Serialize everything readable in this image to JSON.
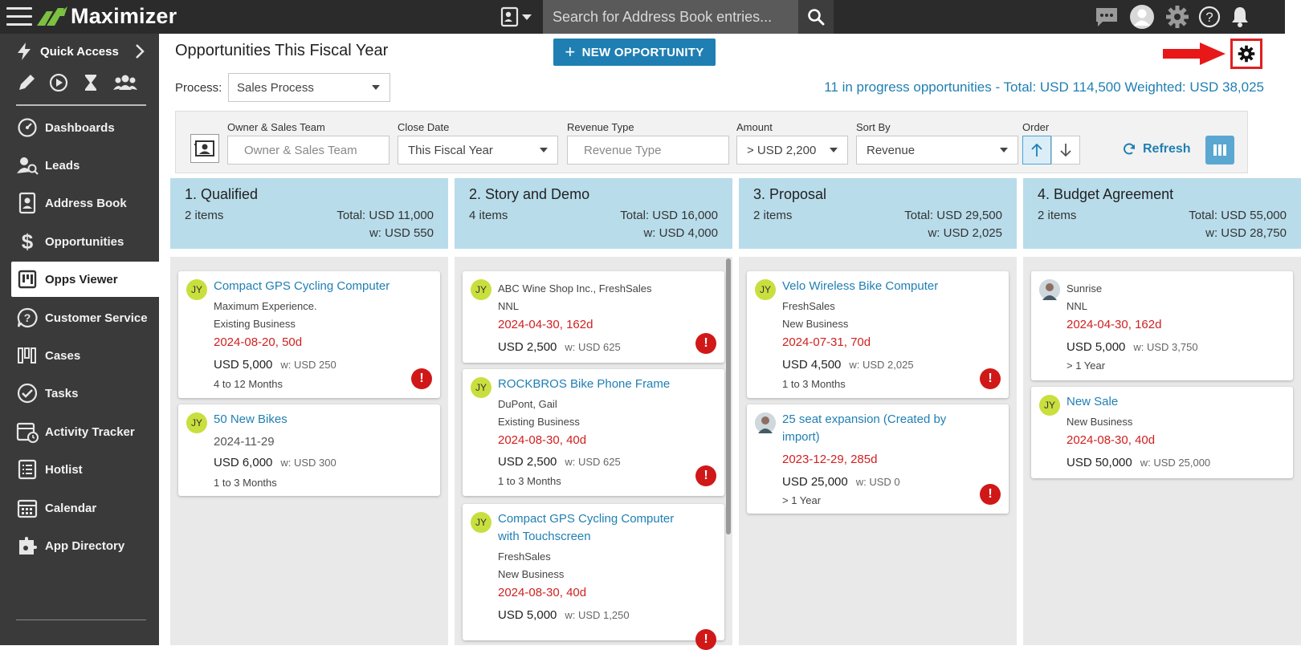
{
  "app": {
    "name": "Maximizer"
  },
  "search": {
    "placeholder": "Search for Address Book entries..."
  },
  "sidebar": {
    "quick_access": "Quick Access",
    "items": [
      {
        "label": "Dashboards",
        "icon": "dashboard-icon"
      },
      {
        "label": "Leads",
        "icon": "leads-icon"
      },
      {
        "label": "Address Book",
        "icon": "address-book-icon"
      },
      {
        "label": "Opportunities",
        "icon": "dollar-icon"
      },
      {
        "label": "Opps Viewer",
        "icon": "opps-viewer-icon",
        "active": true
      },
      {
        "label": "Customer Service",
        "icon": "customer-service-icon"
      },
      {
        "label": "Cases",
        "icon": "cases-icon"
      },
      {
        "label": "Tasks",
        "icon": "tasks-icon"
      },
      {
        "label": "Activity Tracker",
        "icon": "activity-tracker-icon"
      },
      {
        "label": "Hotlist",
        "icon": "hotlist-icon"
      },
      {
        "label": "Calendar",
        "icon": "calendar-icon"
      },
      {
        "label": "App Directory",
        "icon": "app-directory-icon"
      }
    ]
  },
  "header": {
    "title": "Opportunities This Fiscal Year",
    "new_button": "NEW OPPORTUNITY",
    "process_label": "Process:",
    "process_value": "Sales Process",
    "summary": "11 in progress opportunities - Total: USD 114,500 Weighted: USD 38,025"
  },
  "filters": {
    "owner_label": "Owner & Sales Team",
    "owner_placeholder": "Owner & Sales Team",
    "close_label": "Close Date",
    "close_value": "This Fiscal Year",
    "revenue_label": "Revenue Type",
    "revenue_placeholder": "Revenue Type",
    "amount_label": "Amount",
    "amount_value": "> USD 2,200",
    "sort_label": "Sort By",
    "sort_value": "Revenue",
    "order_label": "Order",
    "refresh": "Refresh"
  },
  "columns": [
    {
      "title": "1. Qualified",
      "count": "2 items",
      "total": "Total: USD 11,000",
      "weighted": "w: USD 550",
      "cards": [
        {
          "avatar": "JY",
          "title": "Compact GPS Cycling Computer",
          "lines": [
            "Maximum Experience.",
            "Existing Business"
          ],
          "date": "2024-08-20, 50d",
          "amount": "USD 5,000",
          "w": "w: USD 250",
          "term": "4 to 12 Months",
          "alert": true
        },
        {
          "avatar": "JY",
          "title": "50 New Bikes",
          "lines": [],
          "date": "2024-11-29",
          "amount": "USD 6,000",
          "w": "w: USD 300",
          "term": "1 to 3 Months",
          "alert": false
        }
      ]
    },
    {
      "title": "2. Story and Demo",
      "count": "4 items",
      "total": "Total: USD 16,000",
      "weighted": "w: USD 4,000",
      "cards": [
        {
          "avatar": "JY",
          "title": "",
          "lines": [
            "ABC Wine Shop Inc., FreshSales",
            "NNL"
          ],
          "date": "2024-04-30, 162d",
          "amount": "USD 2,500",
          "w": "w: USD 625",
          "term": "",
          "alert": true
        },
        {
          "avatar": "JY",
          "title": "ROCKBROS Bike Phone Frame",
          "lines": [
            "DuPont, Gail",
            "Existing Business"
          ],
          "date": "2024-08-30, 40d",
          "amount": "USD 2,500",
          "w": "w: USD 625",
          "term": "1 to 3 Months",
          "alert": true
        },
        {
          "avatar": "JY",
          "title": "Compact GPS Cycling Computer with Touchscreen",
          "lines": [
            "FreshSales",
            "New Business"
          ],
          "date": "2024-08-30, 40d",
          "amount": "USD 5,000",
          "w": "w: USD 1,250",
          "term": "",
          "alert": true
        }
      ]
    },
    {
      "title": "3. Proposal",
      "count": "2 items",
      "total": "Total: USD 29,500",
      "weighted": "w: USD 2,025",
      "cards": [
        {
          "avatar": "JY",
          "title": "Velo Wireless Bike Computer",
          "lines": [
            "FreshSales",
            "New Business"
          ],
          "date": "2024-07-31, 70d",
          "amount": "USD 4,500",
          "w": "w: USD 2,025",
          "term": "1 to 3 Months",
          "alert": true
        },
        {
          "avatar": "",
          "title": "25 seat expansion (Created by import)",
          "lines": [],
          "date": "2023-12-29, 285d",
          "amount": "USD 25,000",
          "w": "w: USD 0",
          "term": "> 1 Year",
          "alert": true
        }
      ]
    },
    {
      "title": "4. Budget Agreement",
      "count": "2 items",
      "total": "Total: USD 55,000",
      "weighted": "w: USD 28,750",
      "cards": [
        {
          "avatar": "",
          "title": "",
          "lines": [
            "Sunrise",
            "NNL"
          ],
          "date": "2024-04-30, 162d",
          "amount": "USD 5,000",
          "w": "w: USD 3,750",
          "term": "> 1 Year",
          "alert": false
        },
        {
          "avatar": "JY",
          "title": "New Sale",
          "lines": [
            "New Business"
          ],
          "date": "2024-08-30, 40d",
          "amount": "USD 50,000",
          "w": "w: USD 25,000",
          "term": "",
          "alert": false
        }
      ]
    }
  ]
}
